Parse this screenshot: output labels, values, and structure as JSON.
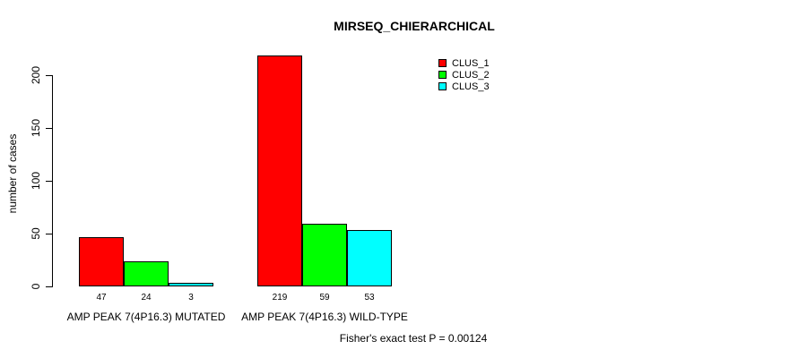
{
  "chart_data": {
    "type": "bar",
    "title": "MIRSEQ_CHIERARCHICAL",
    "ylabel": "number of cases",
    "xlabel": "",
    "categories": [
      "AMP PEAK 7(4P16.3) MUTATED",
      "AMP PEAK 7(4P16.3) WILD-TYPE"
    ],
    "series": [
      {
        "name": "CLUS_1",
        "color": "#ff0000",
        "values": [
          47,
          219
        ]
      },
      {
        "name": "CLUS_2",
        "color": "#00ff00",
        "values": [
          24,
          59
        ]
      },
      {
        "name": "CLUS_3",
        "color": "#00ffff",
        "values": [
          3,
          53
        ]
      }
    ],
    "bar_value_labels": [
      [
        "47",
        "24",
        "3"
      ],
      [
        "219",
        "59",
        "53"
      ]
    ],
    "yticks": [
      0,
      50,
      100,
      150,
      200
    ],
    "ylim": [
      0,
      220
    ],
    "grid": false,
    "legend_position": "top-right-inside",
    "annotation": "Fisher's exact test P = 0.00124"
  },
  "colors": {
    "axis": "#000000",
    "text": "#000000",
    "background": "#ffffff"
  }
}
